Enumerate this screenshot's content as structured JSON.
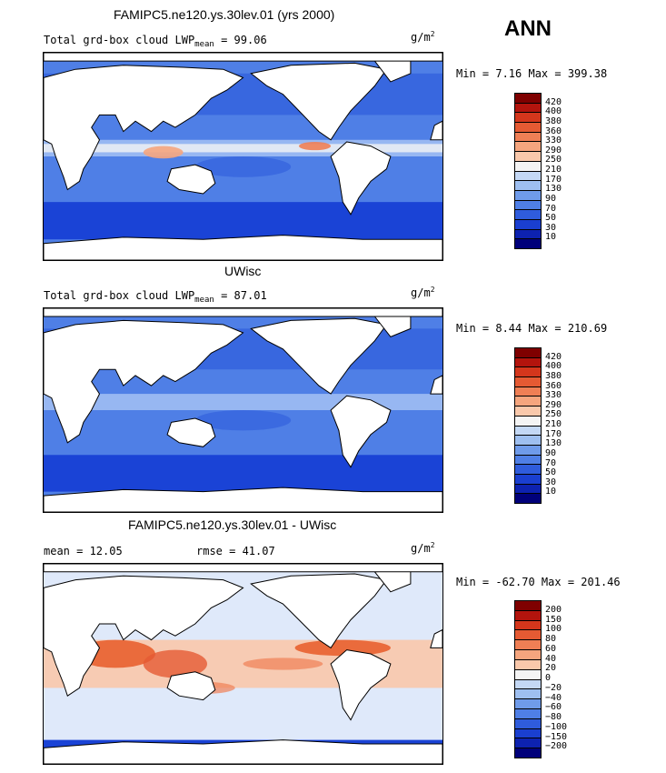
{
  "season": "ANN",
  "colors": {
    "ocean_low": "#1a43d6",
    "ocean_mid": "#4f7fe6",
    "ocean_light": "#a9c5f5",
    "warm": "#e8602f",
    "land": "#ffffff"
  },
  "panels": [
    {
      "title": "FAMIPC5.ne120.ys.30lev.01 (yrs 2000)",
      "var_text": "Total grd-box cloud LWP",
      "mean_sub": "mean",
      "mean_value": "=  99.06",
      "units_base": "g/m",
      "units_exp": "2",
      "minmax": "Min =   7.16 Max = 399.38",
      "colorbar_labels": [
        "420",
        "400",
        "380",
        "360",
        "330",
        "290",
        "250",
        "210",
        "170",
        "130",
        "90",
        "70",
        "50",
        "30",
        "10"
      ],
      "colorbar_colors": [
        "#7f0000",
        "#b3140d",
        "#d4361c",
        "#e55a33",
        "#ef7f55",
        "#f5a57e",
        "#f9c8ab",
        "#f4f4f4",
        "#c4d8f5",
        "#9ebff0",
        "#6f9bea",
        "#4f7fe6",
        "#2f5cdc",
        "#1a3fd0",
        "#0d22b0",
        "#00007a"
      ]
    },
    {
      "title": "UWisc",
      "var_text": "Total grd-box cloud LWP",
      "mean_sub": "mean",
      "mean_value": "=  87.01",
      "units_base": "g/m",
      "units_exp": "2",
      "minmax": "Min =   8.44 Max = 210.69",
      "colorbar_labels": [
        "420",
        "400",
        "380",
        "360",
        "330",
        "290",
        "250",
        "210",
        "170",
        "130",
        "90",
        "70",
        "50",
        "30",
        "10"
      ],
      "colorbar_colors": [
        "#7f0000",
        "#b3140d",
        "#d4361c",
        "#e55a33",
        "#ef7f55",
        "#f5a57e",
        "#f9c8ab",
        "#f4f4f4",
        "#c4d8f5",
        "#9ebff0",
        "#6f9bea",
        "#4f7fe6",
        "#2f5cdc",
        "#1a3fd0",
        "#0d22b0",
        "#00007a"
      ]
    },
    {
      "title": "FAMIPC5.ne120.ys.30lev.01 - UWisc",
      "mean_text": "mean =  12.05",
      "rmse_text": "rmse =  41.07",
      "units_base": "g/m",
      "units_exp": "2",
      "minmax": "Min = -62.70 Max = 201.46",
      "colorbar_labels": [
        "200",
        "150",
        "100",
        "80",
        "60",
        "40",
        "20",
        "0",
        "−20",
        "−40",
        "−60",
        "−80",
        "−100",
        "−150",
        "−200"
      ],
      "colorbar_colors": [
        "#7f0000",
        "#b3140d",
        "#d4361c",
        "#e55a33",
        "#ef7f55",
        "#f5a57e",
        "#f9c8ab",
        "#f4f4f4",
        "#c4d8f5",
        "#9ebff0",
        "#6f9bea",
        "#4f7fe6",
        "#2f5cdc",
        "#1a3fd0",
        "#0d22b0",
        "#00007a"
      ]
    }
  ]
}
